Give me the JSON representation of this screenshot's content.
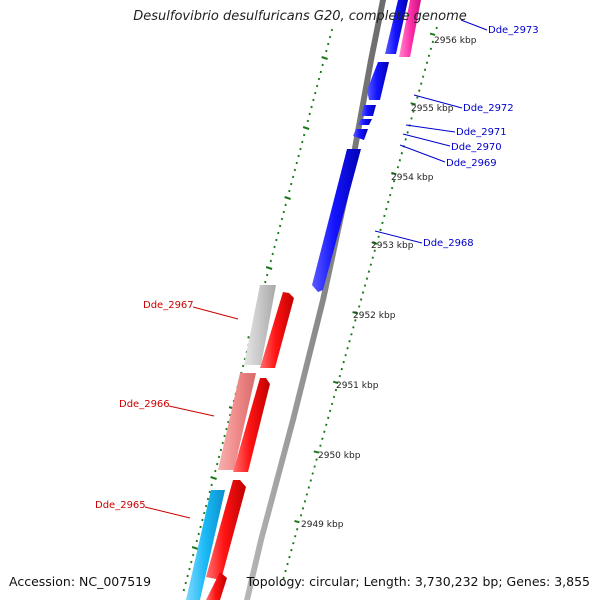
{
  "map": {
    "title": "Desulfovibrio desulfuricans G20, complete genome",
    "accession": "Accession: NC_007519",
    "topology": "Topology: circular; Length: 3,730,232 bp; Genes: 3,855",
    "colors": {
      "backbone": "#8c8c8c",
      "ticks": "#1a7a1a",
      "forward_gene": "#ff1414",
      "reverse_gene": "#1414ff",
      "pink_gene": "#ff33aa",
      "light_red_gene": "#f08a8a",
      "grey_gene": "#c8c8c8",
      "cyan_gene": "#19b8f5",
      "reverse_label": "#0000cc",
      "forward_label": "#cc0000"
    },
    "scale_labels": [
      "2956 kbp",
      "2955 kbp",
      "2954 kbp",
      "2953 kbp",
      "2952 kbp",
      "2951 kbp",
      "2950 kbp",
      "2949 kbp"
    ],
    "reverse_genes": [
      "Dde_2973",
      "Dde_2972",
      "Dde_2971",
      "Dde_2970",
      "Dde_2969",
      "Dde_2968"
    ],
    "forward_genes": [
      "Dde_2967",
      "Dde_2966",
      "Dde_2965"
    ]
  }
}
